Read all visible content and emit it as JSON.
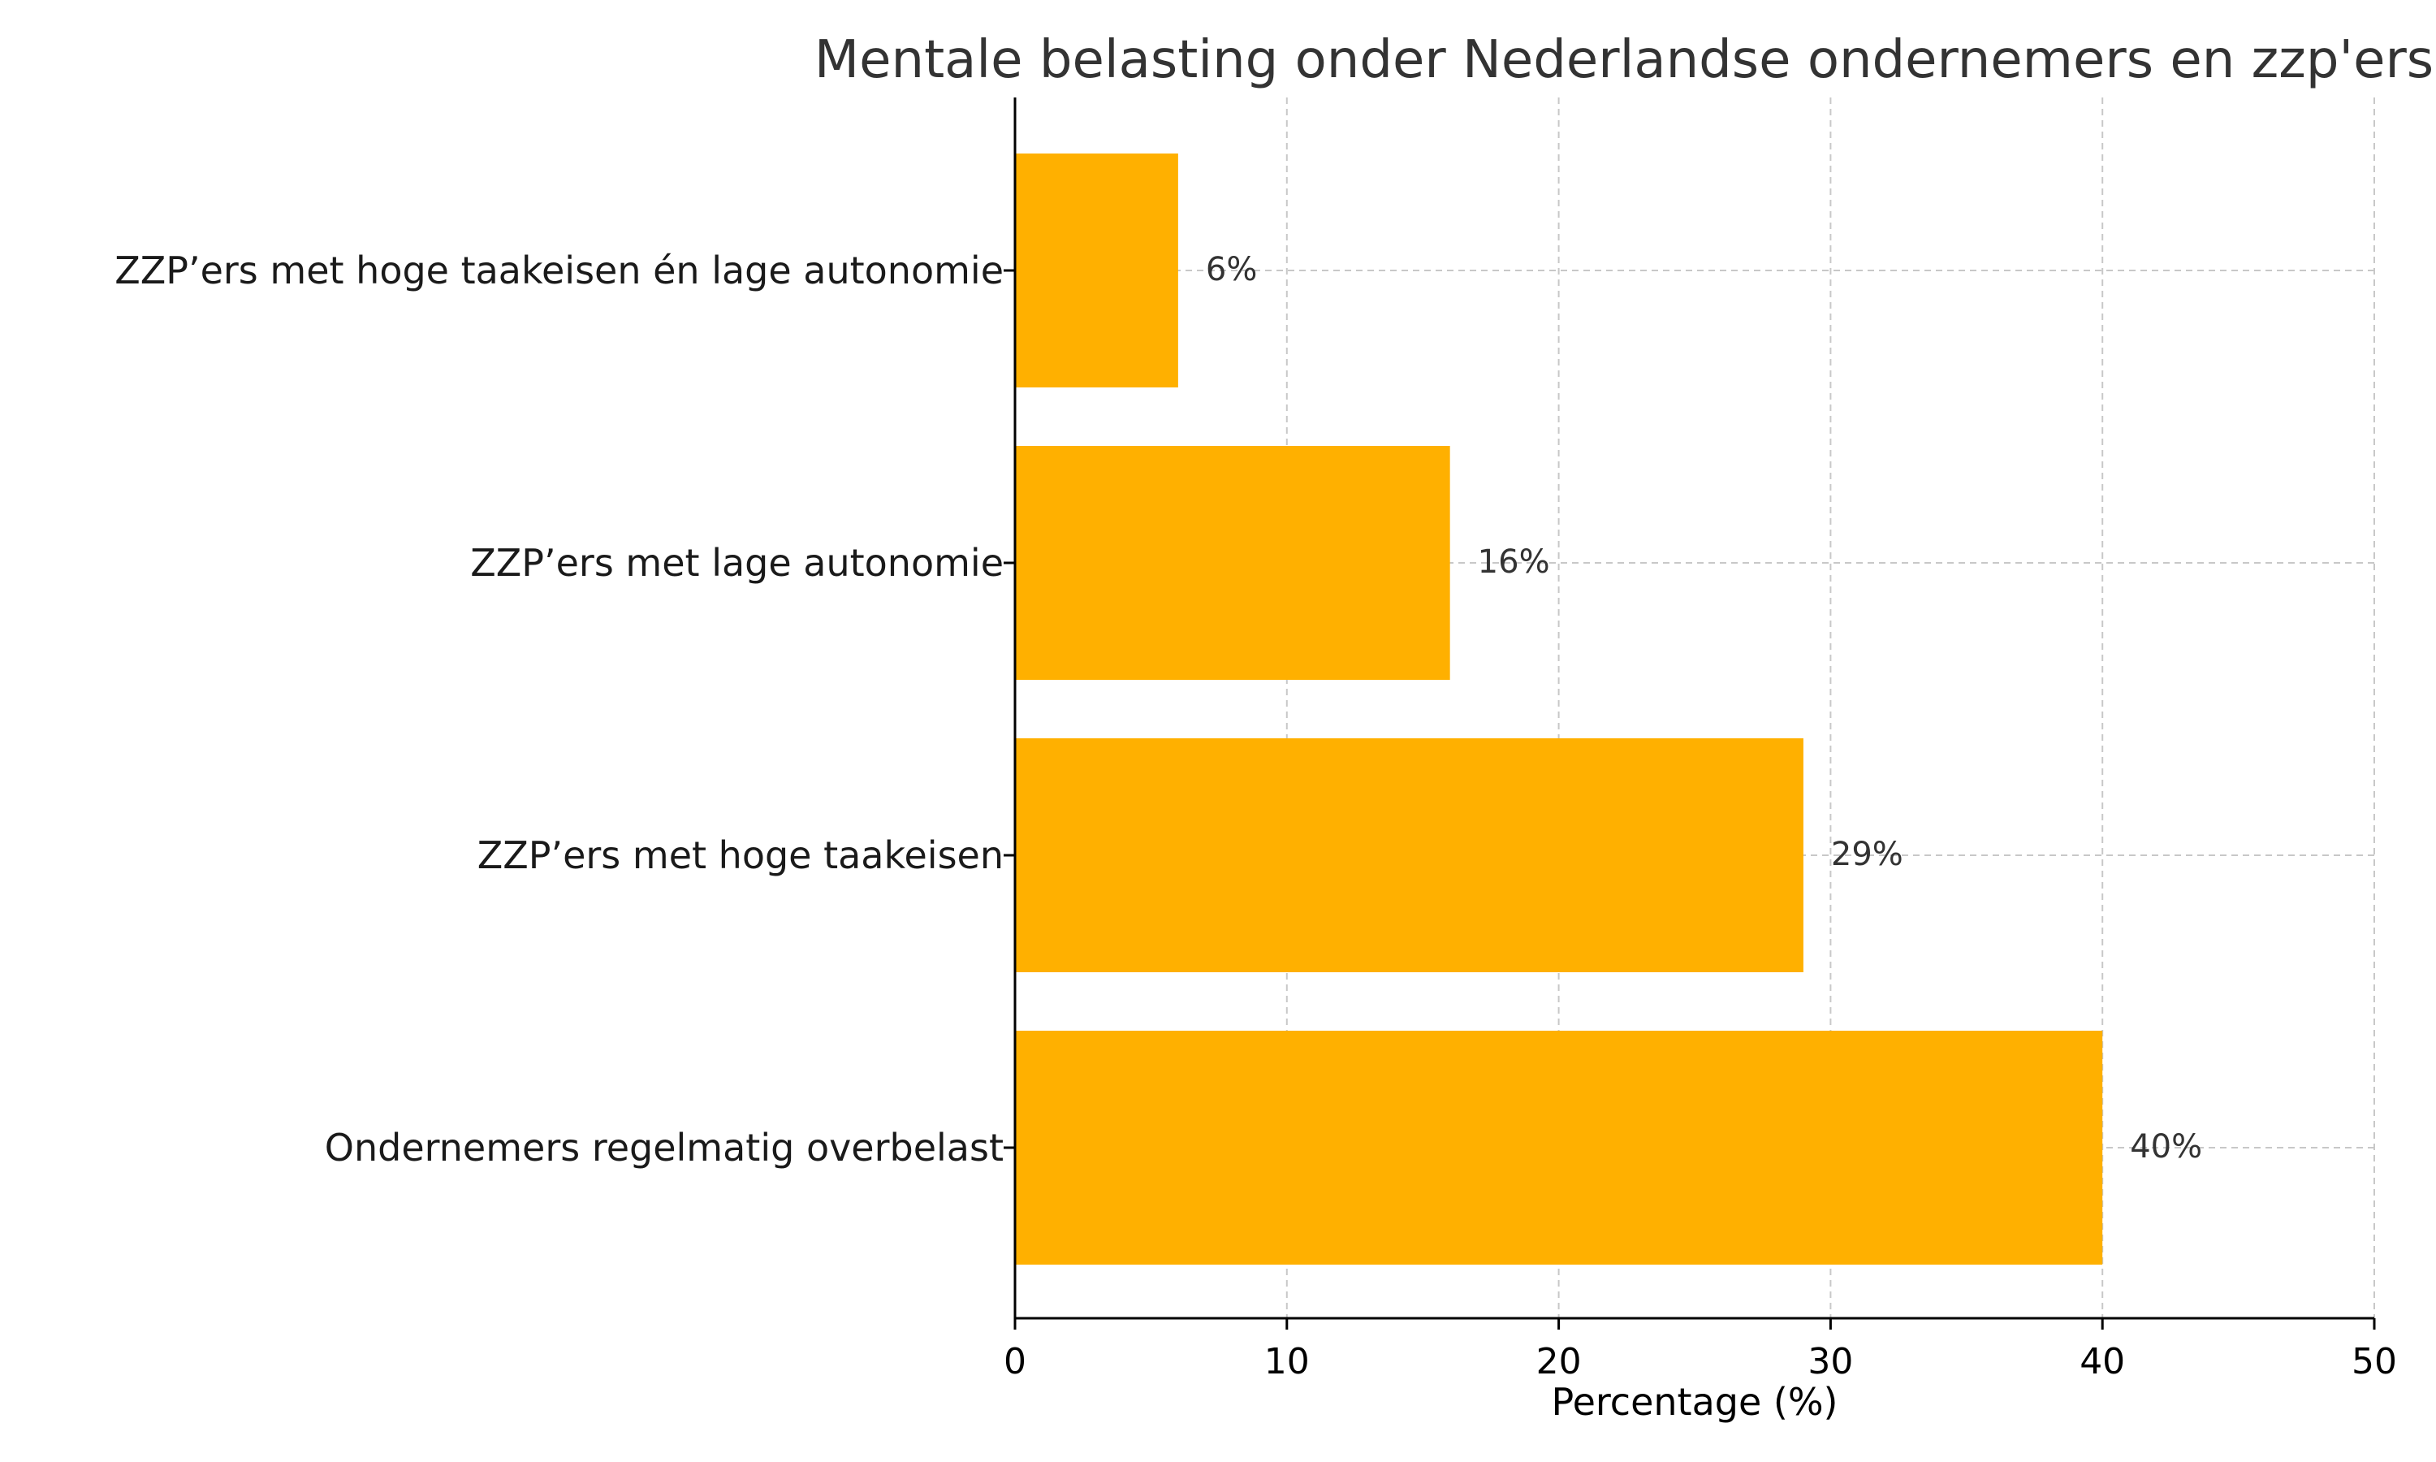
{
  "chart_data": {
    "type": "bar",
    "orientation": "horizontal",
    "title": "Mentale belasting onder Nederlandse ondernemers en zzp'ers",
    "xlabel": "Percentage (%)",
    "ylabel": "",
    "categories": [
      "ZZP’ers met hoge taakeisen én lage autonomie",
      "ZZP’ers met lage autonomie",
      "ZZP’ers met hoge taakeisen",
      "Ondernemers regelmatig overbelast"
    ],
    "values": [
      6,
      16,
      29,
      40
    ],
    "data_labels": [
      "6%",
      "16%",
      "29%",
      "40%"
    ],
    "xlim": [
      0,
      50
    ],
    "xticks": [
      0,
      10,
      20,
      30,
      40,
      50
    ],
    "xtick_labels": [
      "0",
      "10",
      "20",
      "30",
      "40",
      "50"
    ],
    "grid": true,
    "bar_color": "#FFB000"
  }
}
